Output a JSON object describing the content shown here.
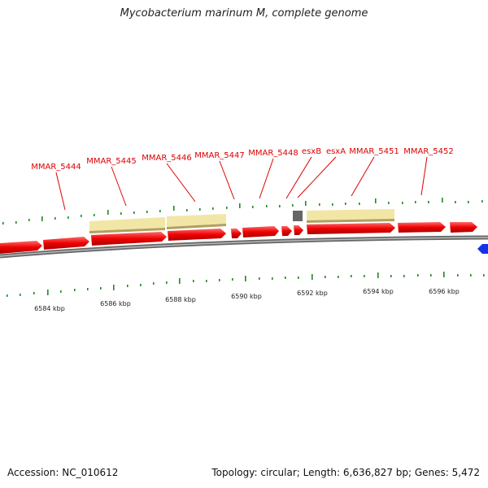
{
  "title": "Mycobacterium marinum M, complete genome",
  "gene_labels": [
    "MMAR_5444",
    "MMAR_5445",
    "MMAR_5446",
    "MMAR_5447",
    "MMAR_5448",
    "esxB",
    "esxA",
    "MMAR_5451",
    "MMAR_5452"
  ],
  "kbp_labels": [
    "6584 kbp",
    "6586 kbp",
    "6588 kbp",
    "6590 kbp",
    "6592 kbp",
    "6594 kbp",
    "6596 kbp"
  ],
  "accession": "Accession: NC_010612",
  "summary": "Topology: circular; Length: 6,636,827 bp; Genes: 5,472",
  "colors": {
    "gene": "#ee0000",
    "feature_box": "#f2e6a6",
    "feature_box_shadow": "#b0a060",
    "backbone": "#888888",
    "tick": "#228822",
    "other_strand_gene": "#1133ee",
    "gap_box": "#666666"
  }
}
